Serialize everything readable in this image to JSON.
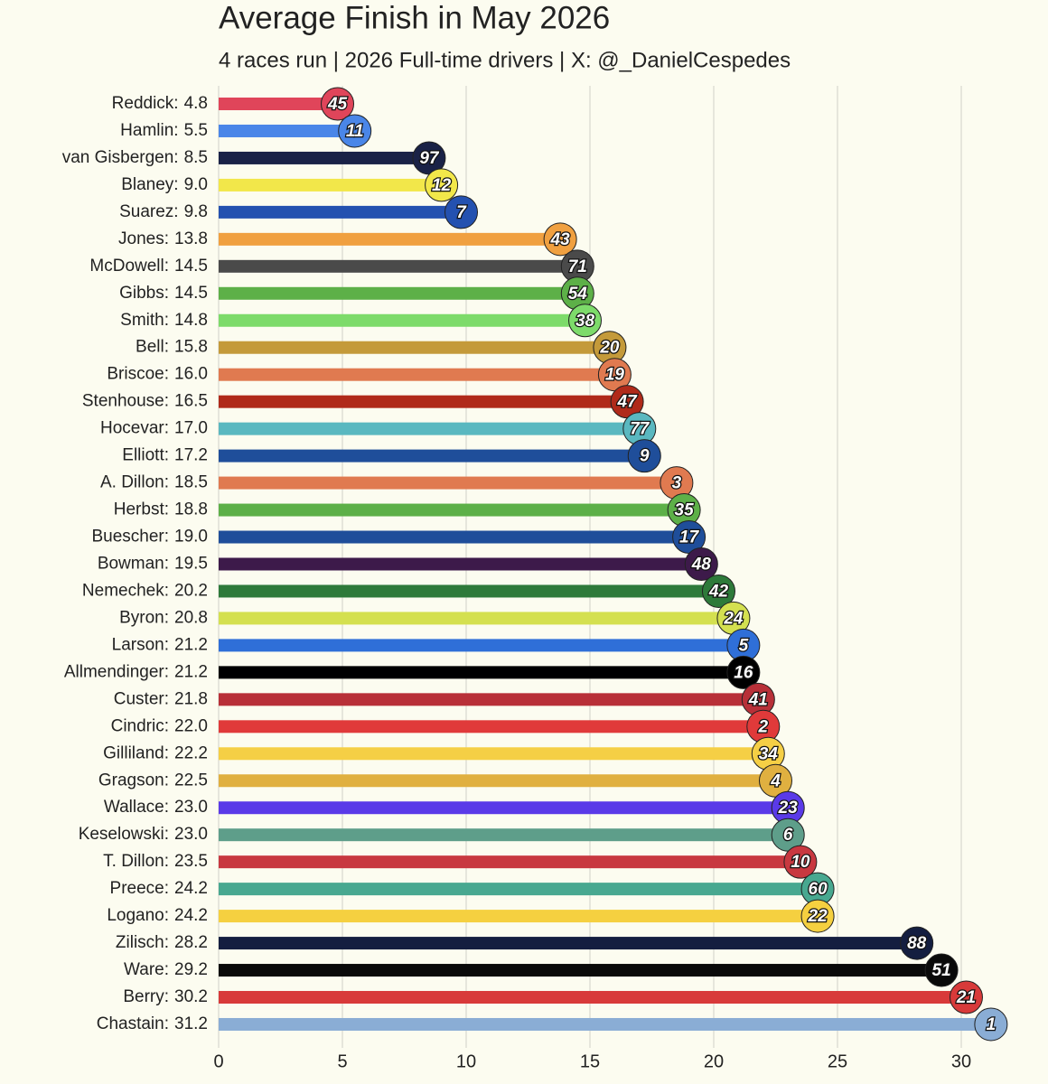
{
  "chart_data": {
    "type": "lollipop",
    "title": "Average Finish in May 2026",
    "subtitle": "4 races run | 2026 Full-time drivers | X: @_DanielCespedes",
    "categories": [
      "Reddick:",
      "Hamlin:",
      "van Gisbergen:",
      "Blaney:",
      "Suarez:",
      "Jones:",
      "McDowell:",
      "Gibbs:",
      "Smith:",
      "Bell:",
      "Briscoe:",
      "Stenhouse:",
      "Hocevar:",
      "Elliott:",
      "A. Dillon:",
      "Herbst:",
      "Buescher:",
      "Bowman:",
      "Nemechek:",
      "Byron:",
      "Larson:",
      "Allmendinger:",
      "Custer:",
      "Cindric:",
      "Gilliland:",
      "Gragson:",
      "Wallace:",
      "Keselowski:",
      "T. Dillon:",
      "Preece:",
      "Logano:",
      "Zilisch:",
      "Ware:",
      "Berry:",
      "Chastain:"
    ],
    "values": [
      4.8,
      5.5,
      8.5,
      9.0,
      9.8,
      13.8,
      14.5,
      14.5,
      14.8,
      15.8,
      16.0,
      16.5,
      17.0,
      17.2,
      18.5,
      18.8,
      19.0,
      19.5,
      20.2,
      20.8,
      21.2,
      21.2,
      21.8,
      22.0,
      22.2,
      22.5,
      23.0,
      23.0,
      23.5,
      24.2,
      24.2,
      28.2,
      29.2,
      30.2,
      31.2
    ],
    "value_labels": [
      "4.8",
      "5.5",
      "8.5",
      "9.0",
      "9.8",
      "13.8",
      "14.5",
      "14.5",
      "14.8",
      "15.8",
      "16.0",
      "16.5",
      "17.0",
      "17.2",
      "18.5",
      "18.8",
      "19.0",
      "19.5",
      "20.2",
      "20.8",
      "21.2",
      "21.2",
      "21.8",
      "22.0",
      "22.2",
      "22.5",
      "23.0",
      "23.0",
      "23.5",
      "24.2",
      "24.2",
      "28.2",
      "29.2",
      "30.2",
      "31.2"
    ],
    "car_numbers": [
      "45",
      "11",
      "97",
      "12",
      "7",
      "43",
      "71",
      "54",
      "38",
      "20",
      "19",
      "47",
      "77",
      "9",
      "3",
      "35",
      "17",
      "48",
      "42",
      "24",
      "5",
      "16",
      "41",
      "2",
      "34",
      "4",
      "23",
      "6",
      "10",
      "60",
      "22",
      "88",
      "51",
      "21",
      "1"
    ],
    "colors": [
      "#e0455a",
      "#4a86e8",
      "#1a2247",
      "#f2e74a",
      "#2451b0",
      "#f0a040",
      "#4a4a4a",
      "#5db048",
      "#7ddb6a",
      "#c49a3a",
      "#e07a50",
      "#b02a1a",
      "#5ab8c0",
      "#1f4e9a",
      "#e07a50",
      "#5db048",
      "#1f4e9a",
      "#3d1a4a",
      "#2e7a3a",
      "#d4e050",
      "#2f6fd8",
      "#000000",
      "#b83038",
      "#e03a3a",
      "#f5cf45",
      "#e0b040",
      "#5a3ae8",
      "#5e9e8a",
      "#c83840",
      "#48a890",
      "#f5d040",
      "#141e40",
      "#0a0a0a",
      "#d83a3a",
      "#8aadd5"
    ],
    "xlim": [
      0,
      33
    ],
    "xticks": [
      0,
      5,
      10,
      15,
      20,
      25,
      30
    ],
    "grid": true
  }
}
